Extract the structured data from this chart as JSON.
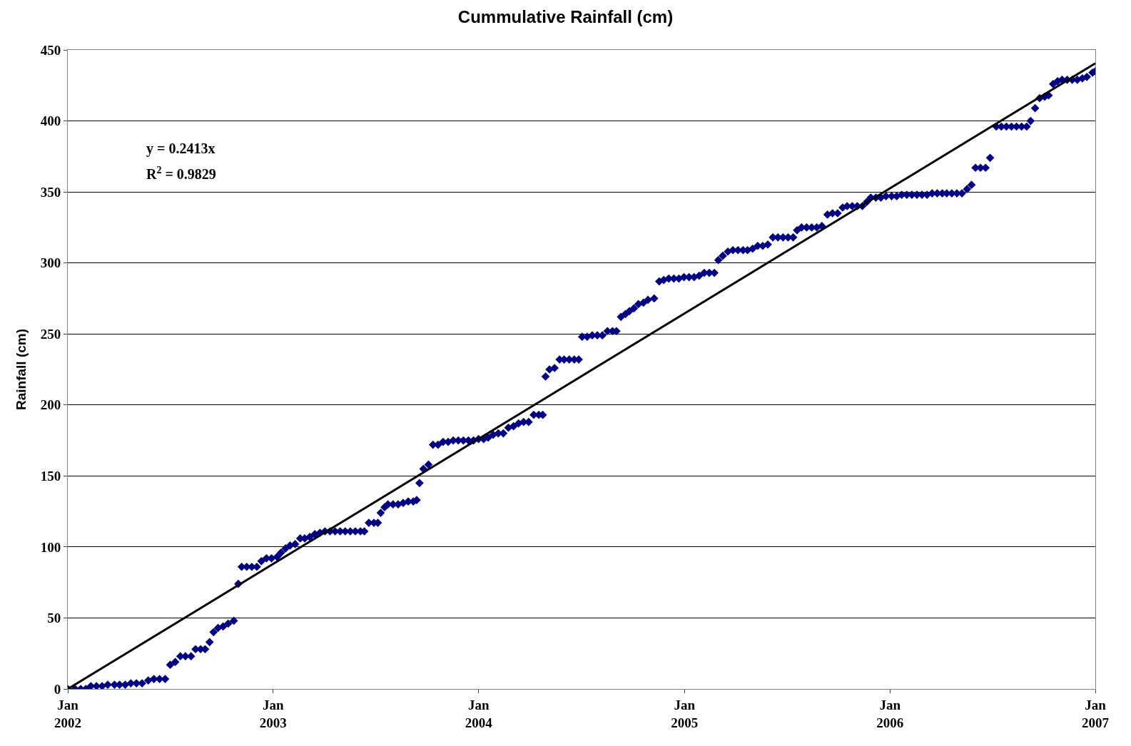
{
  "chart_data": {
    "type": "scatter",
    "title": "Cummulative Rainfall (cm)",
    "ylabel": "Rainfall (cm)",
    "xlim": [
      "2002-01-01",
      "2007-01-01"
    ],
    "xticks": [
      {
        "value": "2002-01-01",
        "label": "Jan\n2002"
      },
      {
        "value": "2003-01-01",
        "label": "Jan\n2003"
      },
      {
        "value": "2004-01-01",
        "label": "Jan\n2004"
      },
      {
        "value": "2005-01-01",
        "label": "Jan\n2005"
      },
      {
        "value": "2006-01-01",
        "label": "Jan\n2006"
      },
      {
        "value": "2007-01-01",
        "label": "Jan\n2007"
      }
    ],
    "ylim": [
      0,
      450
    ],
    "yticks": [
      0,
      50,
      100,
      150,
      200,
      250,
      300,
      350,
      400,
      450
    ],
    "grid": "y",
    "marker": "diamond",
    "annotations": [
      "y = 0.2413x",
      "R$^{2}$ = 0.9829"
    ],
    "series": [
      {
        "color": "#000080",
        "x": [
          "2002-01-01",
          "2002-01-14",
          "2002-01-24",
          "2002-02-02",
          "2002-02-11",
          "2002-02-21",
          "2002-03-03",
          "2002-03-13",
          "2002-03-25",
          "2002-04-03",
          "2002-04-13",
          "2002-04-23",
          "2002-05-03",
          "2002-05-13",
          "2002-05-24",
          "2002-06-03",
          "2002-06-13",
          "2002-06-23",
          "2002-07-02",
          "2002-07-11",
          "2002-07-20",
          "2002-07-29",
          "2002-08-08",
          "2002-08-16",
          "2002-08-25",
          "2002-09-02",
          "2002-09-10",
          "2002-09-17",
          "2002-09-25",
          "2002-10-04",
          "2002-10-13",
          "2002-10-23",
          "2002-10-31",
          "2002-11-06",
          "2002-11-15",
          "2002-11-24",
          "2002-12-03",
          "2002-12-11",
          "2002-12-20",
          "2002-12-29",
          "2003-01-08",
          "2003-01-15",
          "2003-01-23",
          "2003-01-31",
          "2003-02-09",
          "2003-02-18",
          "2003-02-26",
          "2003-03-07",
          "2003-03-16",
          "2003-03-25",
          "2003-04-03",
          "2003-04-12",
          "2003-04-21",
          "2003-04-30",
          "2003-05-09",
          "2003-05-18",
          "2003-05-27",
          "2003-06-05",
          "2003-06-12",
          "2003-06-20",
          "2003-06-29",
          "2003-07-06",
          "2003-07-11",
          "2003-07-18",
          "2003-07-24",
          "2003-08-02",
          "2003-08-11",
          "2003-08-20",
          "2003-08-29",
          "2003-09-07",
          "2003-09-13",
          "2003-09-18",
          "2003-09-25",
          "2003-10-04",
          "2003-10-12",
          "2003-10-21",
          "2003-10-30",
          "2003-11-08",
          "2003-11-17",
          "2003-11-26",
          "2003-12-05",
          "2003-12-14",
          "2003-12-23",
          "2004-01-01",
          "2004-01-10",
          "2004-01-18",
          "2004-01-27",
          "2004-02-05",
          "2004-02-14",
          "2004-02-23",
          "2004-03-03",
          "2004-03-12",
          "2004-03-21",
          "2004-03-30",
          "2004-04-08",
          "2004-04-17",
          "2004-04-24",
          "2004-04-29",
          "2004-05-06",
          "2004-05-15",
          "2004-05-24",
          "2004-06-01",
          "2004-06-10",
          "2004-06-19",
          "2004-06-27",
          "2004-07-03",
          "2004-07-12",
          "2004-07-21",
          "2004-07-30",
          "2004-08-08",
          "2004-08-17",
          "2004-08-26",
          "2004-09-02",
          "2004-09-10",
          "2004-09-18",
          "2004-09-25",
          "2004-10-03",
          "2004-10-11",
          "2004-10-20",
          "2004-10-28",
          "2004-11-08",
          "2004-11-17",
          "2004-11-25",
          "2004-12-04",
          "2004-12-13",
          "2004-12-22",
          "2004-12-31",
          "2005-01-09",
          "2005-01-18",
          "2005-01-27",
          "2005-02-05",
          "2005-02-14",
          "2005-02-23",
          "2005-03-02",
          "2005-03-10",
          "2005-03-19",
          "2005-03-28",
          "2005-04-06",
          "2005-04-15",
          "2005-04-23",
          "2005-05-02",
          "2005-05-11",
          "2005-05-20",
          "2005-05-29",
          "2005-06-07",
          "2005-06-16",
          "2005-06-25",
          "2005-07-04",
          "2005-07-13",
          "2005-07-20",
          "2005-07-28",
          "2005-08-06",
          "2005-08-15",
          "2005-08-24",
          "2005-09-02",
          "2005-09-12",
          "2005-09-21",
          "2005-09-30",
          "2005-10-09",
          "2005-10-17",
          "2005-10-26",
          "2005-11-04",
          "2005-11-13",
          "2005-11-21",
          "2005-11-28",
          "2005-12-07",
          "2005-12-16",
          "2005-12-25",
          "2006-01-04",
          "2006-01-13",
          "2006-01-22",
          "2006-01-31",
          "2006-02-09",
          "2006-02-18",
          "2006-02-27",
          "2006-03-08",
          "2006-03-17",
          "2006-03-26",
          "2006-04-04",
          "2006-04-12",
          "2006-04-21",
          "2006-04-30",
          "2006-05-09",
          "2006-05-18",
          "2006-05-26",
          "2006-06-02",
          "2006-06-11",
          "2006-06-20",
          "2006-06-28",
          "2006-07-09",
          "2006-07-18",
          "2006-07-27",
          "2006-08-05",
          "2006-08-14",
          "2006-08-23",
          "2006-09-01",
          "2006-09-08",
          "2006-09-16",
          "2006-09-24",
          "2006-10-03",
          "2006-10-10",
          "2006-10-18",
          "2006-10-26",
          "2006-11-03",
          "2006-11-12",
          "2006-11-21",
          "2006-11-30",
          "2006-12-09",
          "2006-12-17",
          "2006-12-27",
          "2007-01-01"
        ],
        "values": [
          0,
          0,
          0,
          0,
          2,
          2,
          2,
          3,
          3,
          3,
          3,
          4,
          4,
          4,
          6,
          7,
          7,
          7,
          17,
          19,
          23,
          23,
          23,
          28,
          28,
          28,
          33,
          40,
          43,
          44,
          46,
          48,
          74,
          86,
          86,
          86,
          86,
          90,
          92,
          92,
          93,
          96,
          99,
          101,
          102,
          106,
          106,
          107,
          109,
          110,
          111,
          111,
          111,
          111,
          111,
          111,
          111,
          111,
          111,
          117,
          117,
          117,
          124,
          128,
          130,
          130,
          130,
          131,
          132,
          132,
          133,
          145,
          155,
          158,
          172,
          172,
          174,
          174,
          175,
          175,
          175,
          175,
          175,
          176,
          176,
          177,
          179,
          180,
          180,
          184,
          185,
          187,
          188,
          188,
          193,
          193,
          193,
          220,
          225,
          226,
          232,
          232,
          232,
          232,
          232,
          248,
          248,
          249,
          249,
          249,
          252,
          252,
          252,
          262,
          264,
          266,
          268,
          271,
          272,
          274,
          275,
          287,
          288,
          289,
          289,
          289,
          290,
          290,
          290,
          291,
          293,
          293,
          293,
          302,
          305,
          308,
          309,
          309,
          309,
          309,
          310,
          312,
          312,
          313,
          318,
          318,
          318,
          318,
          318,
          323,
          325,
          325,
          325,
          325,
          326,
          334,
          335,
          335,
          339,
          340,
          340,
          340,
          340,
          343,
          346,
          346,
          346,
          347,
          347,
          347,
          348,
          348,
          348,
          348,
          348,
          348,
          349,
          349,
          349,
          349,
          349,
          349,
          349,
          352,
          355,
          367,
          367,
          367,
          374,
          396,
          396,
          396,
          396,
          396,
          396,
          396,
          400,
          409,
          416,
          417,
          418,
          426,
          428,
          429,
          429,
          429,
          429,
          430,
          431,
          434,
          435
        ]
      },
      {
        "type": "line",
        "color": "#000000",
        "marker": "none",
        "x": [
          "2002-01-01",
          "2007-01-01"
        ],
        "values": [
          0,
          440.6
        ]
      }
    ]
  }
}
